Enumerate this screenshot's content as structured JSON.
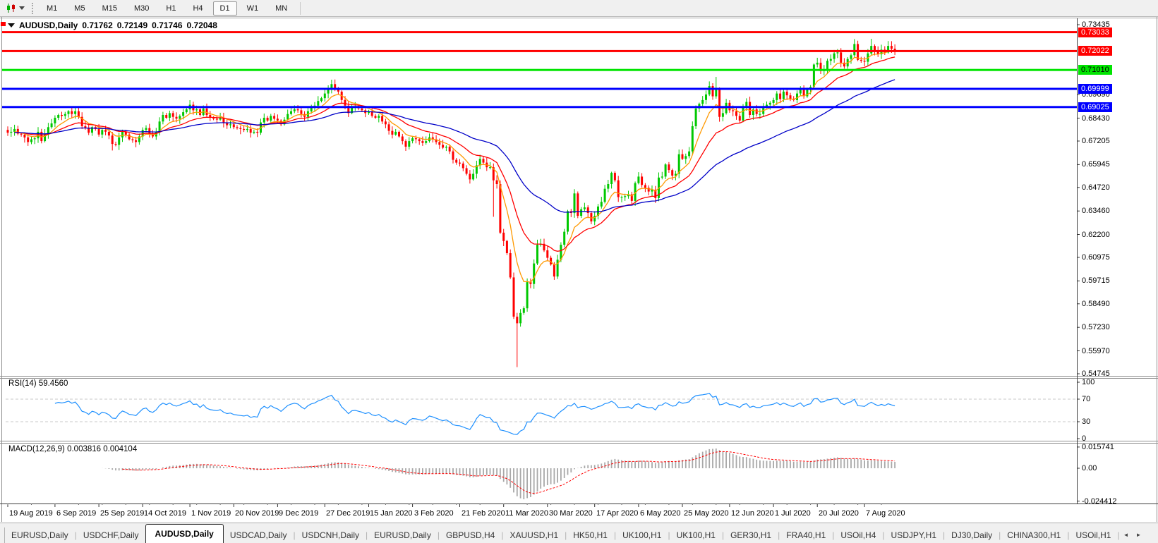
{
  "toolbar": {
    "timeframes": [
      "M1",
      "M5",
      "M15",
      "M30",
      "H1",
      "H4",
      "D1",
      "W1",
      "MN"
    ],
    "active_timeframe": "D1"
  },
  "chart_title": {
    "symbol": "AUDUSD,Daily",
    "open": "0.71762",
    "high": "0.72149",
    "low": "0.71746",
    "close": "0.72048"
  },
  "rsi_label": "RSI(14) 59.4560",
  "macd_label": "MACD(12,26,9) 0.003816 0.004104",
  "chart_data": {
    "type": "candlestick",
    "symbol": "AUDUSD",
    "timeframe": "Daily",
    "first_open": 0.678,
    "closes": [
      0.6765,
      0.677,
      0.6785,
      0.676,
      0.6755,
      0.674,
      0.6715,
      0.673,
      0.6735,
      0.677,
      0.672,
      0.676,
      0.6795,
      0.6815,
      0.6845,
      0.686,
      0.6855,
      0.6865,
      0.688,
      0.6865,
      0.688,
      0.685,
      0.68,
      0.679,
      0.6765,
      0.6795,
      0.6785,
      0.6755,
      0.678,
      0.677,
      0.675,
      0.6705,
      0.67,
      0.674,
      0.677,
      0.6755,
      0.673,
      0.6725,
      0.6715,
      0.6745,
      0.678,
      0.679,
      0.6755,
      0.6745,
      0.677,
      0.6825,
      0.686,
      0.6845,
      0.687,
      0.685,
      0.684,
      0.6855,
      0.6875,
      0.689,
      0.6915,
      0.6885,
      0.689,
      0.686,
      0.6895,
      0.686,
      0.6845,
      0.684,
      0.6835,
      0.6845,
      0.682,
      0.6805,
      0.681,
      0.6795,
      0.679,
      0.6785,
      0.678,
      0.6785,
      0.6765,
      0.677,
      0.6765,
      0.682,
      0.6845,
      0.683,
      0.6855,
      0.684,
      0.683,
      0.681,
      0.6835,
      0.6865,
      0.688,
      0.689,
      0.6885,
      0.6865,
      0.685,
      0.688,
      0.69,
      0.691,
      0.6935,
      0.695,
      0.6975,
      0.7,
      0.7025,
      0.6995,
      0.6985,
      0.694,
      0.691,
      0.687,
      0.69,
      0.6905,
      0.6895,
      0.6885,
      0.687,
      0.688,
      0.6855,
      0.6845,
      0.6855,
      0.6825,
      0.681,
      0.6775,
      0.6755,
      0.677,
      0.6745,
      0.672,
      0.669,
      0.672,
      0.6735,
      0.673,
      0.672,
      0.671,
      0.672,
      0.674,
      0.673,
      0.6715,
      0.67,
      0.6685,
      0.669,
      0.6665,
      0.662,
      0.6605,
      0.66,
      0.6575,
      0.6545,
      0.6515,
      0.6545,
      0.659,
      0.6625,
      0.6605,
      0.658,
      0.658,
      0.651,
      0.649,
      0.623,
      0.6185,
      0.612,
      0.599,
      0.578,
      0.5745,
      0.58,
      0.5825,
      0.5965,
      0.5955,
      0.6065,
      0.6165,
      0.617,
      0.6135,
      0.6095,
      0.606,
      0.5995,
      0.6085,
      0.6165,
      0.6235,
      0.6345,
      0.6335,
      0.644,
      0.632,
      0.6355,
      0.6365,
      0.6335,
      0.629,
      0.632,
      0.637,
      0.6395,
      0.6465,
      0.649,
      0.655,
      0.651,
      0.642,
      0.642,
      0.6425,
      0.6435,
      0.64,
      0.6495,
      0.653,
      0.6485,
      0.647,
      0.645,
      0.646,
      0.6415,
      0.6525,
      0.653,
      0.6595,
      0.6565,
      0.6535,
      0.6545,
      0.665,
      0.6625,
      0.664,
      0.6665,
      0.68,
      0.6895,
      0.692,
      0.694,
      0.697,
      0.7015,
      0.696,
      0.7,
      0.685,
      0.687,
      0.6925,
      0.6885,
      0.688,
      0.6855,
      0.683,
      0.6905,
      0.693,
      0.686,
      0.689,
      0.6865,
      0.6865,
      0.6905,
      0.6915,
      0.6925,
      0.694,
      0.6975,
      0.6945,
      0.6985,
      0.6965,
      0.6945,
      0.694,
      0.6975,
      0.7005,
      0.696,
      0.6995,
      0.701,
      0.713,
      0.714,
      0.7095,
      0.7105,
      0.715,
      0.716,
      0.719,
      0.7195,
      0.714,
      0.712,
      0.716,
      0.718,
      0.724,
      0.7155,
      0.715,
      0.7145,
      0.719,
      0.723,
      0.7205,
      0.7185,
      0.721,
      0.7195,
      0.723,
      0.7215,
      0.72048
    ],
    "special_wicks": {
      "31": {
        "low": 0.667
      },
      "96": {
        "high": 0.7045
      },
      "144": {
        "low": 0.6315
      },
      "151": {
        "low": 0.551
      },
      "210": {
        "high": 0.7064
      },
      "251": {
        "high": 0.7255
      },
      "256": {
        "high": 0.7268
      },
      "261": {
        "high": 0.725
      }
    },
    "colors": {
      "up": "#00c800",
      "down": "#ff0000",
      "axis_line": "#3c3c3c"
    },
    "moving_averages": [
      {
        "type": "ema",
        "period": 8,
        "color": "#ff9900",
        "name": "ma-fast-orange"
      },
      {
        "type": "ema",
        "period": 20,
        "color": "#ff0000",
        "name": "ma-mid-red"
      },
      {
        "type": "ema",
        "period": 50,
        "color": "#0000c8",
        "name": "ma-slow-blue"
      }
    ],
    "hlines": [
      {
        "price": 0.73033,
        "color": "#ff0000",
        "label": "0.73033",
        "text": "#ffffff"
      },
      {
        "price": 0.72022,
        "color": "#ff0000",
        "label": "0.72022",
        "text": "#ffffff"
      },
      {
        "price": 0.7101,
        "color": "#00e400",
        "label": "0.71010",
        "text": "#000000"
      },
      {
        "price": 0.69999,
        "color": "#0000ff",
        "label": "0.69999",
        "text": "#ffffff"
      },
      {
        "price": 0.69025,
        "color": "#0000ff",
        "label": "0.69025",
        "text": "#ffffff"
      }
    ],
    "price_axis_ticks": [
      "0.73435",
      "0.69690",
      "0.68430",
      "0.67205",
      "0.65945",
      "0.64720",
      "0.63460",
      "0.62200",
      "0.60975",
      "0.59715",
      "0.58490",
      "0.57230",
      "0.55970",
      "0.54745"
    ],
    "date_ticks": [
      {
        "index": 0,
        "label": "19 Aug 2019"
      },
      {
        "index": 14,
        "label": "6 Sep 2019"
      },
      {
        "index": 27,
        "label": "25 Sep 2019"
      },
      {
        "index": 40,
        "label": "14 Oct 2019"
      },
      {
        "index": 54,
        "label": "1 Nov 2019"
      },
      {
        "index": 67,
        "label": "20 Nov 2019"
      },
      {
        "index": 80,
        "label": "9 Dec 2019"
      },
      {
        "index": 94,
        "label": "27 Dec 2019"
      },
      {
        "index": 107,
        "label": "15 Jan 2020"
      },
      {
        "index": 120,
        "label": "3 Feb 2020"
      },
      {
        "index": 134,
        "label": "21 Feb 2020"
      },
      {
        "index": 147,
        "label": "11 Mar 2020"
      },
      {
        "index": 160,
        "label": "30 Mar 2020"
      },
      {
        "index": 174,
        "label": "17 Apr 2020"
      },
      {
        "index": 187,
        "label": "6 May 2020"
      },
      {
        "index": 200,
        "label": "25 May 2020"
      },
      {
        "index": 214,
        "label": "12 Jun 2020"
      },
      {
        "index": 227,
        "label": "1 Jul 2020"
      },
      {
        "index": 240,
        "label": "20 Jul 2020"
      },
      {
        "index": 254,
        "label": "7 Aug 2020"
      }
    ],
    "rsi": {
      "period": 14,
      "value": "59.4560",
      "color": "#1e90ff",
      "levels": [
        70,
        30
      ],
      "level_color": "#c8c8c8",
      "axis_ticks": [
        {
          "label": "100",
          "value": 100
        },
        {
          "label": "70",
          "value": 70
        },
        {
          "label": "30",
          "value": 30
        },
        {
          "label": "0",
          "value": 0
        }
      ]
    },
    "macd": {
      "fast": 12,
      "slow": 26,
      "signal": 9,
      "main_value": "0.003816",
      "signal_value": "0.004104",
      "hist_color": "#a8a8a8",
      "signal_color": "#ff0000",
      "axis_ticks": [
        {
          "label": "0.015741",
          "value": 0.015741
        },
        {
          "label": "0.00",
          "value": 0
        },
        {
          "label": "-0.024412",
          "value": -0.024412
        }
      ]
    }
  },
  "tabs": {
    "items": [
      "EURUSD,Daily",
      "USDCHF,Daily",
      "AUDUSD,Daily",
      "USDCAD,Daily",
      "USDCNH,Daily",
      "EURUSD,Daily",
      "GBPUSD,H4",
      "XAUUSD,H1",
      "HK50,H1",
      "UK100,H1",
      "UK100,H1",
      "GER30,H1",
      "FRA40,H1",
      "USOil,H4",
      "USDJPY,H1",
      "DJ30,Daily",
      "CHINA300,H1",
      "USOil,H1"
    ],
    "active_index": 2,
    "scroll_left": "◄",
    "scroll_right": "►"
  }
}
